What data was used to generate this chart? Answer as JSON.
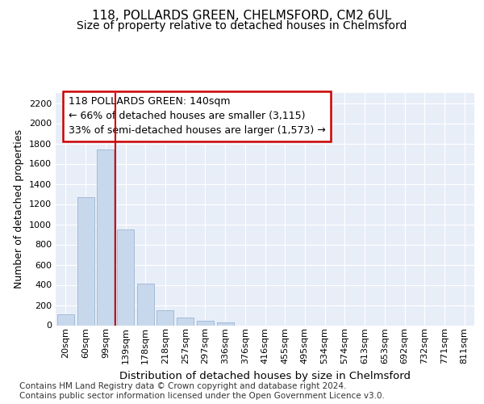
{
  "title": "118, POLLARDS GREEN, CHELMSFORD, CM2 6UL",
  "subtitle": "Size of property relative to detached houses in Chelmsford",
  "xlabel": "Distribution of detached houses by size in Chelmsford",
  "ylabel": "Number of detached properties",
  "bar_color": "#c8d8ec",
  "bar_edge_color": "#9ab5d4",
  "background_color": "#e8eef8",
  "grid_color": "#ffffff",
  "categories": [
    "20sqm",
    "60sqm",
    "99sqm",
    "139sqm",
    "178sqm",
    "218sqm",
    "257sqm",
    "297sqm",
    "336sqm",
    "376sqm",
    "416sqm",
    "455sqm",
    "495sqm",
    "534sqm",
    "574sqm",
    "613sqm",
    "653sqm",
    "692sqm",
    "732sqm",
    "771sqm",
    "811sqm"
  ],
  "values": [
    110,
    1270,
    1740,
    950,
    415,
    148,
    75,
    42,
    25,
    0,
    0,
    0,
    0,
    0,
    0,
    0,
    0,
    0,
    0,
    0,
    0
  ],
  "ylim": [
    0,
    2300
  ],
  "yticks": [
    0,
    200,
    400,
    600,
    800,
    1000,
    1200,
    1400,
    1600,
    1800,
    2000,
    2200
  ],
  "vline_color": "#cc0000",
  "annotation_line1": "118 POLLARDS GREEN: 140sqm",
  "annotation_line2": "← 66% of detached houses are smaller (3,115)",
  "annotation_line3": "33% of semi-detached houses are larger (1,573) →",
  "annotation_box_color": "#ffffff",
  "annotation_border_color": "#cc0000",
  "footer_text": "Contains HM Land Registry data © Crown copyright and database right 2024.\nContains public sector information licensed under the Open Government Licence v3.0.",
  "title_fontsize": 11,
  "subtitle_fontsize": 10,
  "annotation_fontsize": 9,
  "footer_fontsize": 7.5,
  "ylabel_fontsize": 9,
  "xlabel_fontsize": 9.5,
  "tick_fontsize": 8
}
